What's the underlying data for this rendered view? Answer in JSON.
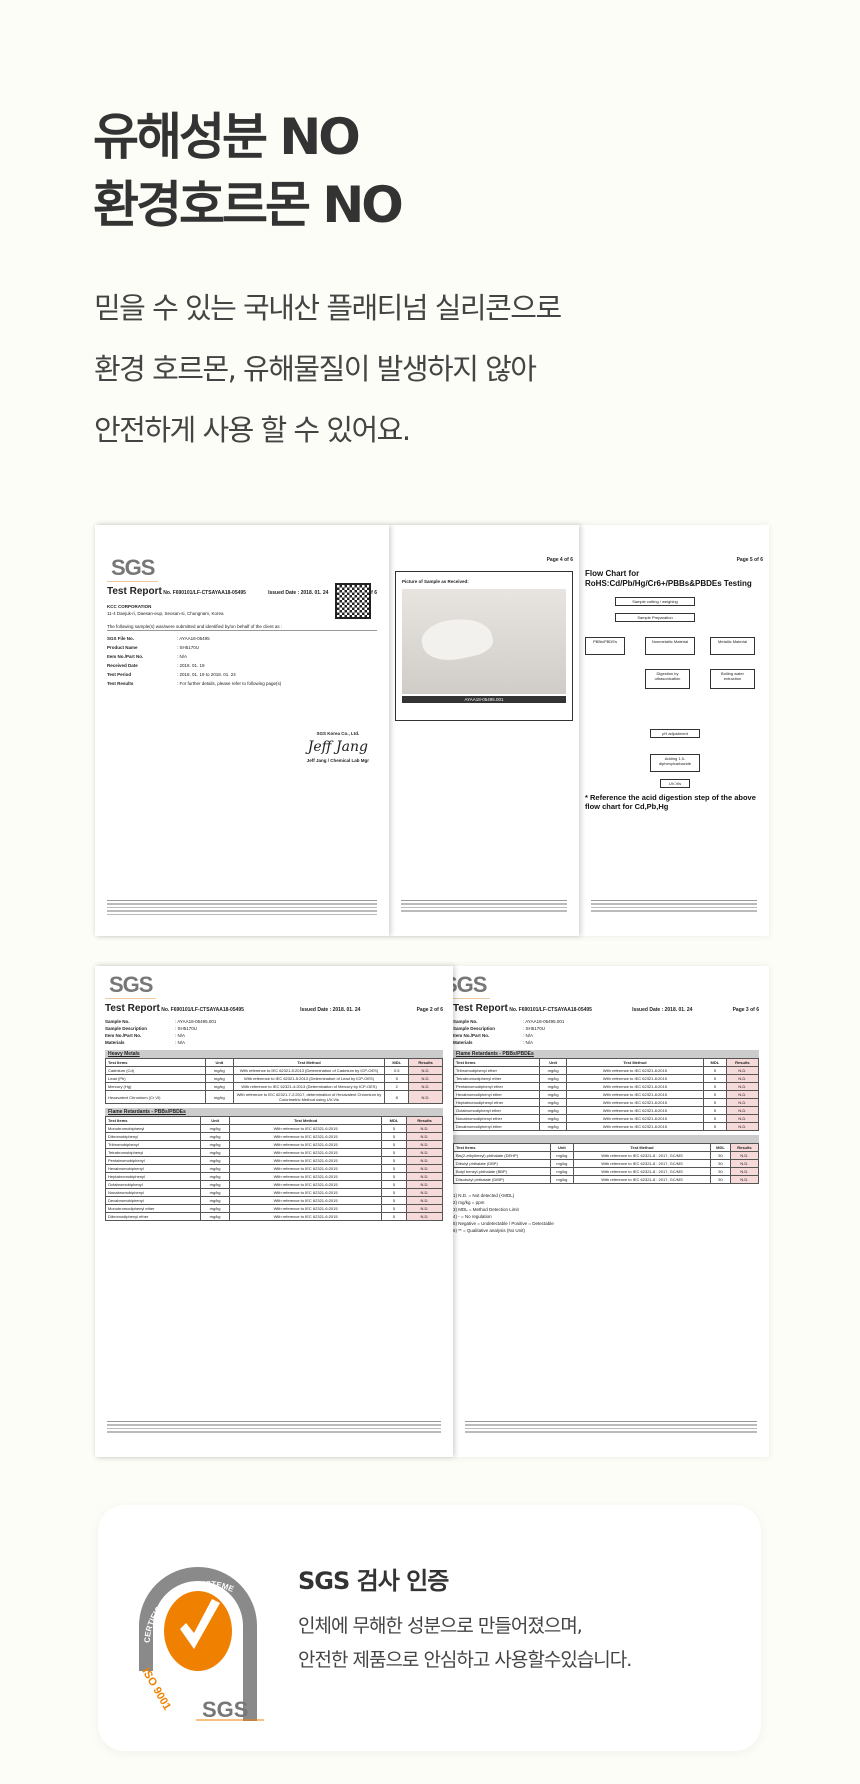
{
  "header": {
    "title_line1": "유해성분 NO",
    "title_line2": "환경호르몬 NO"
  },
  "description": {
    "line1": "믿을 수 있는 국내산 플래티넘 실리콘으로",
    "line2": "환경 호르몬, 유해물질이 발생하지 않아",
    "line3": "안전하게 사용 할 수 있어요."
  },
  "documents": {
    "logo": "SGS",
    "report_label": "Test Report",
    "report_no": "No. F690101/LF-CTSAYAA18-05495",
    "issued_date": "Issued Date : 2018. 01. 24",
    "page1": {
      "page": "Page 1 of 6",
      "company": "KCC CORPORATION",
      "address": "11-4 Daejuk-ri, Daesan-eup, Seosan-si, Chungnam, Korea",
      "intro": "The following sample(s) was/were submitted and identified by/on behalf of the client as :",
      "fields": [
        [
          "SGS File No.",
          ": AYAA18-05495"
        ],
        [
          "Product Name",
          ": SH5170U"
        ],
        [
          "Item No./Part No.",
          ": N/A"
        ],
        [
          "Received Date",
          ": 2018. 01. 19"
        ],
        [
          "Test Period",
          ": 2018. 01. 19  to  2018. 01. 24"
        ],
        [
          "Test Results",
          ": For further details, please refer to following page(s)"
        ]
      ],
      "signer_company": "SGS Korea Co., Ltd.",
      "signature": "Jeff Jang",
      "signer": "Jeff Jang / Chemical Lab Mgr"
    },
    "page4": {
      "page": "Page 4 of 6",
      "caption": "Picture of Sample as Received:",
      "sample_id": "AYAA18-05495.001"
    },
    "page5": {
      "page": "Page 5 of 6",
      "title": "Flow Chart for RoHS:Cd/Pb/Hg/Cr6+/PBBs&PBDEs Testing",
      "note": "* Reference the acid digestion step of the above flow chart for Cd,Pb,Hg"
    },
    "page2": {
      "page": "Page 2 of 6",
      "fields": [
        [
          "Sample No.",
          ": AYAA18-05495.001"
        ],
        [
          "Sample Description",
          ": SH5170U"
        ],
        [
          "Item No./Part No.",
          ": N/A"
        ],
        [
          "Materials",
          ": N/A"
        ]
      ],
      "section1": "Heavy Metals",
      "columns": [
        "Test Items",
        "Unit",
        "Test Method",
        "MDL",
        "Results"
      ],
      "rows1": [
        [
          "Cadmium (Cd)",
          "mg/kg",
          "With reference to IEC 62321-5:2013 (Determination of Cadmium by ICP-OES)",
          "0.5",
          "N.D."
        ],
        [
          "Lead (Pb)",
          "mg/kg",
          "With reference to IEC 62321-5:2013 (Determination of Lead by ICP-OES)",
          "5",
          "N.D."
        ],
        [
          "Mercury (Hg)",
          "mg/kg",
          "With reference to IEC 62321-4:2013 (Determination of Mercury by ICP-OES)",
          "2",
          "N.D."
        ],
        [
          "Hexavalent Chromium (Cr VI)",
          "mg/kg",
          "With reference to IEC 62321-7-2:2017, determination of Hexavalent Chromium by Colorimetric Method using UV-Vis",
          "8",
          "N.D."
        ]
      ],
      "section2": "Flame Retardants - PBBs/PBDEs",
      "rows2": [
        [
          "Monobromobiphenyl",
          "mg/kg",
          "With reference to IEC 62321-6:2015",
          "5",
          "N.D."
        ],
        [
          "Dibromobiphenyl",
          "mg/kg",
          "With reference to IEC 62321-6:2015",
          "5",
          "N.D."
        ],
        [
          "Tribromobiphenyl",
          "mg/kg",
          "With reference to IEC 62321-6:2015",
          "5",
          "N.D."
        ],
        [
          "Tetrabromobiphenyl",
          "mg/kg",
          "With reference to IEC 62321-6:2015",
          "5",
          "N.D."
        ],
        [
          "Pentabromobiphenyl",
          "mg/kg",
          "With reference to IEC 62321-6:2015",
          "5",
          "N.D."
        ],
        [
          "Hexabromobiphenyl",
          "mg/kg",
          "With reference to IEC 62321-6:2015",
          "5",
          "N.D."
        ],
        [
          "Heptabromobiphenyl",
          "mg/kg",
          "With reference to IEC 62321-6:2015",
          "5",
          "N.D."
        ],
        [
          "Octabromobiphenyl",
          "mg/kg",
          "With reference to IEC 62321-6:2015",
          "5",
          "N.D."
        ],
        [
          "Nonabromobiphenyl",
          "mg/kg",
          "With reference to IEC 62321-6:2015",
          "5",
          "N.D."
        ],
        [
          "Decabromobiphenyl",
          "mg/kg",
          "With reference to IEC 62321-6:2015",
          "5",
          "N.D."
        ],
        [
          "Monobromodiphenyl ether",
          "mg/kg",
          "With reference to IEC 62321-6:2015",
          "5",
          "N.D."
        ],
        [
          "Dibromodiphenyl ether",
          "mg/kg",
          "With reference to IEC 62321-6:2015",
          "5",
          "N.D."
        ]
      ]
    },
    "page3": {
      "page": "Page 3 of 6",
      "section": "Flame Retardants - PBBs/PBDEs",
      "rows1": [
        [
          "Tribromodiphenyl ether",
          "mg/kg",
          "With reference to IEC 62321-6:2015",
          "5",
          "N.D."
        ],
        [
          "Tetrabromodiphenyl ether",
          "mg/kg",
          "With reference to IEC 62321-6:2015",
          "5",
          "N.D."
        ],
        [
          "Pentabromodiphenyl ether",
          "mg/kg",
          "With reference to IEC 62321-6:2015",
          "5",
          "N.D."
        ],
        [
          "Hexabromodiphenyl ether",
          "mg/kg",
          "With reference to IEC 62321-6:2015",
          "5",
          "N.D."
        ],
        [
          "Heptabromodiphenyl ether",
          "mg/kg",
          "With reference to IEC 62321-6:2015",
          "5",
          "N.D."
        ],
        [
          "Octabromodiphenyl ether",
          "mg/kg",
          "With reference to IEC 62321-6:2015",
          "5",
          "N.D."
        ],
        [
          "Nonabromodiphenyl ether",
          "mg/kg",
          "With reference to IEC 62321-6:2015",
          "5",
          "N.D."
        ],
        [
          "Decabromodiphenyl ether",
          "mg/kg",
          "With reference to IEC 62321-6:2015",
          "5",
          "N.D."
        ]
      ],
      "rows2": [
        [
          "Bis(2-ethylhexyl) phthalate (DEHP)",
          "mg/kg",
          "With reference to IEC 62321-8 : 2017, GC/MS",
          "50",
          "N.D."
        ],
        [
          "Dibutyl phthalate (DBP)",
          "mg/kg",
          "With reference to IEC 62321-8 : 2017, GC/MS",
          "50",
          "N.D."
        ],
        [
          "Butyl benzyl phthalate (BBP)",
          "mg/kg",
          "With reference to IEC 62321-8 : 2017, GC/MS",
          "50",
          "N.D."
        ],
        [
          "Diisobutyl phthalate (DIBP)",
          "mg/kg",
          "With reference to IEC 62321-8 : 2017, GC/MS",
          "50",
          "N.D."
        ]
      ],
      "notes": [
        "1) N.D. = Not detected (<MDL)",
        "2) mg/kg = ppm",
        "3) MDL = Method Detection Limit",
        "4) - = No regulation",
        "5) Negative = Undetectable / Positive = Detectable",
        "6) ** = Qualitative analysis (No Unit)"
      ]
    }
  },
  "certification": {
    "title": "SGS 검사 인증",
    "line1": "인체에 무해한 성분으로 만들어졌으며,",
    "line2": "안전한 제품으로 안심하고 사용할수있습니다.",
    "logo_arc_text": "CERTIFICATION DE SYSTEME",
    "logo_iso": "ISO 9001",
    "logo_sgs": "SGS",
    "accent": "#f08000",
    "arc_color": "#8a8a8a"
  }
}
